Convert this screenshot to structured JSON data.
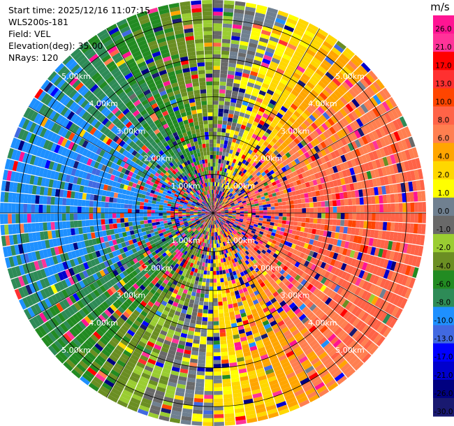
{
  "header": {
    "start_time": "Start time: 2025/12/16 11:07:15",
    "instrument": "WLS200s-181",
    "field": "Field: VEL",
    "elevation": "Elevation(deg): 35.00",
    "nrays": "NRays: 120"
  },
  "chart_data": {
    "type": "heatmap",
    "projection": "polar-ppi",
    "field": "VEL",
    "elevation_deg": 35.0,
    "n_rays": 120,
    "range_rings_km": [
      1.0,
      2.0,
      3.0,
      4.0,
      5.0
    ],
    "range_ring_labels": [
      "1.00km",
      "2.00km",
      "3.00km",
      "4.00km",
      "5.00km"
    ],
    "max_range_km": 5.5,
    "colorbar": {
      "unit": "m/s",
      "ticks": [
        26.0,
        21.0,
        17.0,
        13.0,
        10.0,
        8.0,
        6.0,
        4.0,
        2.0,
        1.0,
        0.0,
        -1.0,
        -2.0,
        -4.0,
        -6.0,
        -8.0,
        -10.0,
        -13.0,
        -17.0,
        -21.0,
        -26.0,
        -30.0
      ],
      "tick_labels": [
        "26.0",
        "21.0",
        "17.0",
        "13.0",
        "10.0",
        "8.0",
        "6.0",
        "4.0",
        "2.0",
        "1.0",
        "0.0",
        "-1.0",
        "-2.0",
        "-4.0",
        "-6.0",
        "-8.0",
        "-10.0",
        "-13.0",
        "-17.0",
        "-21.0",
        "-26.0",
        "-30.0"
      ],
      "bins": [
        {
          "min": 26.0,
          "max": 30.0,
          "color": "#ff1493"
        },
        {
          "min": 21.0,
          "max": 26.0,
          "color": "#ff3399"
        },
        {
          "min": 17.0,
          "max": 21.0,
          "color": "#ff0000"
        },
        {
          "min": 13.0,
          "max": 17.0,
          "color": "#ff3030"
        },
        {
          "min": 10.0,
          "max": 13.0,
          "color": "#ff4500"
        },
        {
          "min": 8.0,
          "max": 10.0,
          "color": "#ff6347"
        },
        {
          "min": 6.0,
          "max": 8.0,
          "color": "#ff7f50"
        },
        {
          "min": 4.0,
          "max": 6.0,
          "color": "#ffa500"
        },
        {
          "min": 2.0,
          "max": 4.0,
          "color": "#ffd700"
        },
        {
          "min": 1.0,
          "max": 2.0,
          "color": "#ffff00"
        },
        {
          "min": 0.0,
          "max": 1.0,
          "color": "#708090"
        },
        {
          "min": -1.0,
          "max": 0.0,
          "color": "#696969"
        },
        {
          "min": -2.0,
          "max": -1.0,
          "color": "#9acd32"
        },
        {
          "min": -4.0,
          "max": -2.0,
          "color": "#6b8e23"
        },
        {
          "min": -6.0,
          "max": -4.0,
          "color": "#228b22"
        },
        {
          "min": -8.0,
          "max": -6.0,
          "color": "#2e8b57"
        },
        {
          "min": -10.0,
          "max": -8.0,
          "color": "#1e90ff"
        },
        {
          "min": -13.0,
          "max": -10.0,
          "color": "#4169e1"
        },
        {
          "min": -17.0,
          "max": -13.0,
          "color": "#0000ff"
        },
        {
          "min": -21.0,
          "max": -17.0,
          "color": "#0000cd"
        },
        {
          "min": -26.0,
          "max": -21.0,
          "color": "#000080"
        },
        {
          "min": -30.0,
          "max": -26.0,
          "color": "#191970"
        }
      ]
    },
    "velocity_pattern": {
      "description_free": true,
      "max_inbound_azimuth_deg": 280,
      "approx_peak_velocity_ms": 9.0
    }
  },
  "colors": {
    "ring": "#000000",
    "ray_gap": "#ffffff",
    "ring_label": "#ffffff"
  }
}
